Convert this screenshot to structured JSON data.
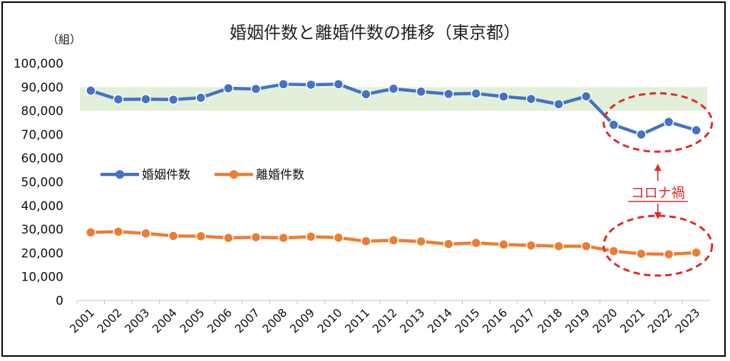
{
  "chart_data": {
    "type": "line",
    "title": "婚姻件数と離婚件数の推移（東京都）",
    "unit_label": "（組）",
    "x": [
      "2001",
      "2002",
      "2003",
      "2004",
      "2005",
      "2006",
      "2007",
      "2008",
      "2009",
      "2010",
      "2011",
      "2012",
      "2013",
      "2014",
      "2015",
      "2016",
      "2017",
      "2018",
      "2019",
      "2020",
      "2021",
      "2022",
      "2023"
    ],
    "ylim": [
      0,
      100000
    ],
    "yticks": [
      "0",
      "10,000",
      "20,000",
      "30,000",
      "40,000",
      "50,000",
      "60,000",
      "70,000",
      "80,000",
      "90,000",
      "100,000"
    ],
    "series": [
      {
        "name": "婚姻件数",
        "color": "#4472c4",
        "values": [
          88500,
          84800,
          84900,
          84700,
          85500,
          89500,
          89200,
          91200,
          91000,
          91200,
          87000,
          89300,
          88100,
          87100,
          87300,
          86000,
          85000,
          82800,
          86100,
          74100,
          70000,
          75300,
          71800
        ]
      },
      {
        "name": "離婚件数",
        "color": "#ed7d31",
        "values": [
          28700,
          29000,
          28300,
          27200,
          27100,
          26400,
          26700,
          26400,
          26900,
          26500,
          25000,
          25400,
          24900,
          23800,
          24300,
          23600,
          23200,
          22900,
          22900,
          20800,
          19700,
          19500,
          20200
        ]
      }
    ],
    "band": {
      "from": 80000,
      "to": 90000,
      "color": "#e2efd9"
    },
    "annotation": {
      "text": "コロナ禍",
      "color": "#e0282a"
    },
    "legend": "middle-left",
    "grid": false
  }
}
